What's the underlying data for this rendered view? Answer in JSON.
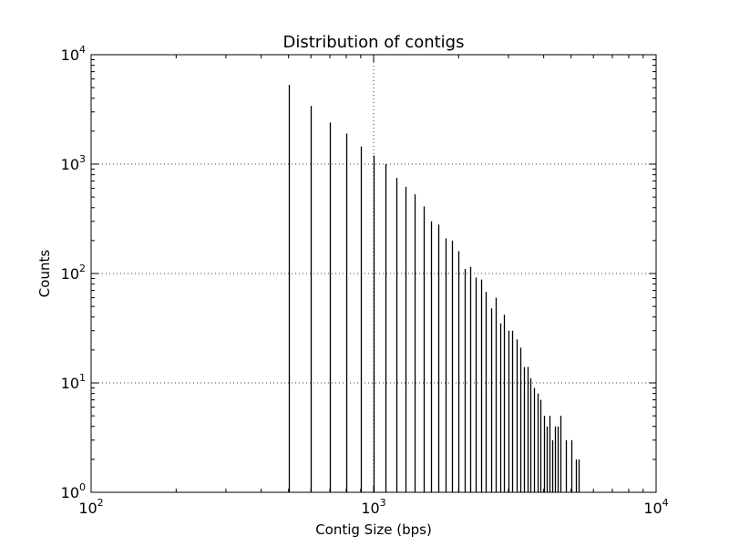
{
  "chart_data": {
    "type": "bar",
    "title": "Distribution of contigs",
    "xlabel": "Contig Size (bps)",
    "ylabel": "Counts",
    "xscale": "log",
    "yscale": "log",
    "xlim": [
      100,
      10000
    ],
    "ylim": [
      1,
      10000
    ],
    "grid": true,
    "x_ticks": [
      {
        "base": "10",
        "exp": "2",
        "value": 100
      },
      {
        "base": "10",
        "exp": "3",
        "value": 1000
      },
      {
        "base": "10",
        "exp": "4",
        "value": 10000
      }
    ],
    "y_ticks": [
      {
        "base": "10",
        "exp": "0",
        "value": 1
      },
      {
        "base": "10",
        "exp": "1",
        "value": 10
      },
      {
        "base": "10",
        "exp": "2",
        "value": 100
      },
      {
        "base": "10",
        "exp": "3",
        "value": 1000
      },
      {
        "base": "10",
        "exp": "4",
        "value": 10000
      }
    ],
    "x": [
      500,
      600,
      700,
      800,
      900,
      1000,
      1100,
      1200,
      1300,
      1400,
      1500,
      1600,
      1700,
      1800,
      1900,
      2000,
      2100,
      2200,
      2300,
      2400,
      2500,
      2600,
      2700,
      2800,
      2900,
      3000,
      3100,
      3200,
      3300,
      3400,
      3500,
      3600,
      3700,
      3800,
      3900,
      4000,
      4100,
      4200,
      4300,
      4400,
      4500,
      4600,
      4800,
      5000,
      5200,
      5300
    ],
    "values": [
      5300,
      3400,
      2400,
      1900,
      1450,
      1200,
      1000,
      750,
      620,
      530,
      410,
      300,
      280,
      210,
      200,
      160,
      110,
      115,
      92,
      88,
      68,
      48,
      60,
      35,
      42,
      30,
      30,
      25,
      21,
      14,
      14,
      11,
      9,
      8,
      7,
      5,
      4,
      5,
      3,
      4,
      4,
      5,
      3,
      3,
      2,
      2
    ]
  }
}
